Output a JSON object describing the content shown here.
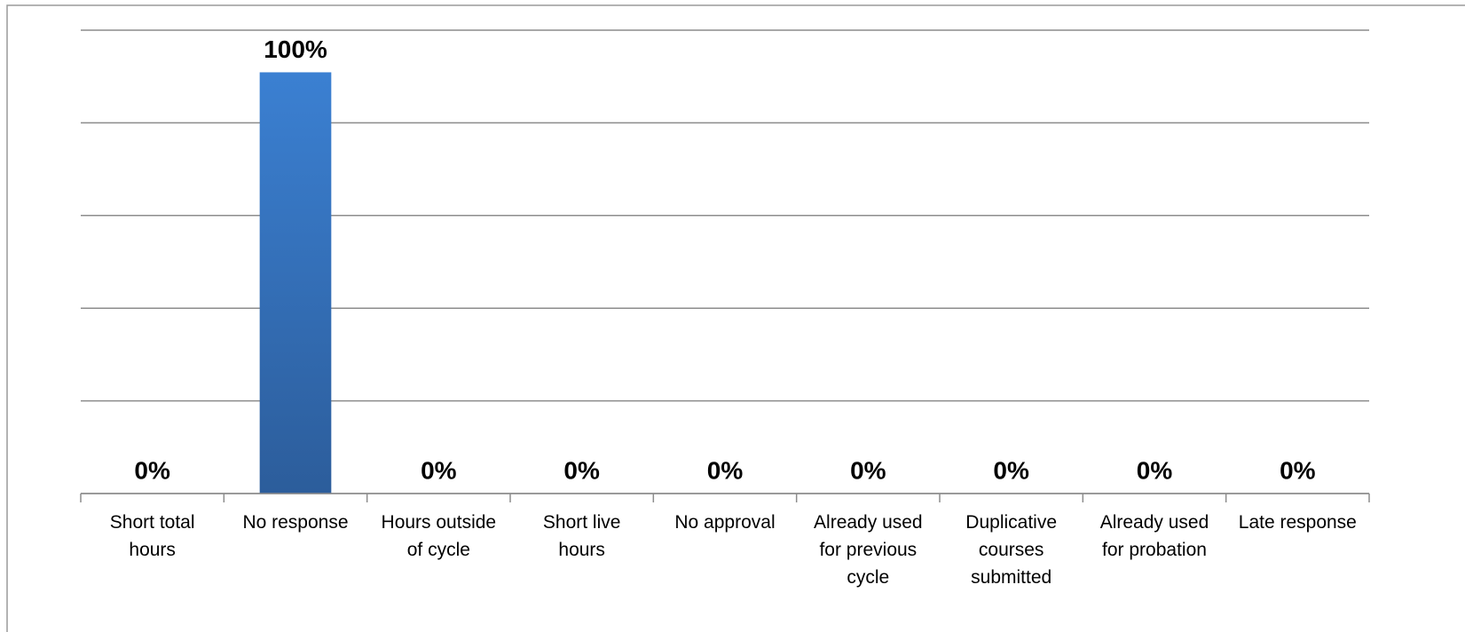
{
  "chart_data": {
    "type": "bar",
    "categories": [
      "Short total hours",
      "No response",
      "Hours outside of cycle",
      "Short live hours",
      "No approval",
      "Already used for previous cycle",
      "Duplicative courses submitted",
      "Already used for probation",
      "Late response"
    ],
    "values": [
      0,
      100,
      0,
      0,
      0,
      0,
      0,
      0,
      0
    ],
    "value_labels": [
      "0%",
      "100%",
      "0%",
      "0%",
      "0%",
      "0%",
      "0%",
      "0%",
      "0%"
    ],
    "color": "#3a7bc8",
    "ylim": [
      0,
      110
    ],
    "yticks": [
      0,
      22,
      44,
      66,
      88,
      110
    ],
    "grid": true
  }
}
